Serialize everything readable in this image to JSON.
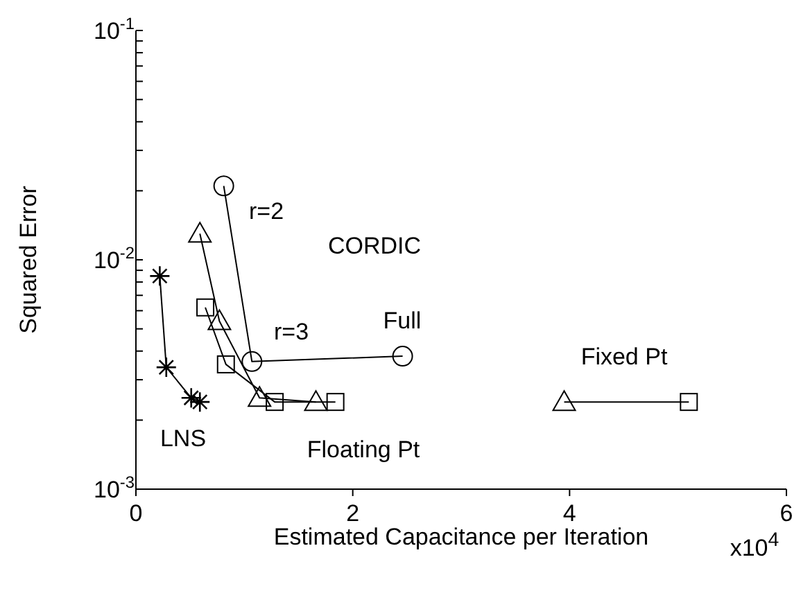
{
  "chart_data": {
    "type": "line",
    "xlabel": "Estimated Capacitance per Iteration",
    "ylabel": "Squared Error",
    "log": "y",
    "grid": false,
    "legend": false,
    "xlim": [
      0,
      6
    ],
    "xticks": [
      0,
      2,
      4,
      6
    ],
    "ylim": [
      0.001,
      0.1
    ],
    "yticks": [
      {
        "value": 0.001,
        "label": "10$^{-3}$"
      },
      {
        "value": 0.002,
        "label": null
      },
      {
        "value": 0.003,
        "label": null
      },
      {
        "value": 0.004,
        "label": null
      },
      {
        "value": 0.005,
        "label": null
      },
      {
        "value": 0.006,
        "label": null
      },
      {
        "value": 0.007,
        "label": null
      },
      {
        "value": 0.008,
        "label": null
      },
      {
        "value": 0.009,
        "label": null
      },
      {
        "value": 0.01,
        "label": "10$^{-2}$"
      },
      {
        "value": 0.02,
        "label": null
      },
      {
        "value": 0.03,
        "label": null
      },
      {
        "value": 0.04,
        "label": null
      },
      {
        "value": 0.05,
        "label": null
      },
      {
        "value": 0.06,
        "label": null
      },
      {
        "value": 0.07,
        "label": null
      },
      {
        "value": 0.08,
        "label": null
      },
      {
        "value": 0.09,
        "label": null
      },
      {
        "value": 0.1,
        "label": "10$^{-1}$"
      }
    ],
    "series": [
      {
        "color": "#000000",
        "marker": "cross",
        "x": [
          0.22,
          0.28,
          0.51,
          0.59
        ],
        "values": [
          0.0085,
          0.0034,
          0.0025,
          0.0024
        ]
      },
      {
        "color": "#000000",
        "marker": "circle",
        "x": [
          0.81,
          1.07,
          2.46
        ],
        "values": [
          0.021,
          0.0036,
          0.0038
        ]
      },
      {
        "color": "#000000",
        "marker": "triangle",
        "x": [
          0.59,
          0.77,
          1.14,
          1.66
        ],
        "values": [
          0.013,
          0.0054,
          0.0025,
          0.0024
        ]
      },
      {
        "color": "#000000",
        "marker": "square",
        "x": [
          0.64,
          0.83,
          1.28,
          1.84
        ],
        "values": [
          0.0062,
          0.0035,
          0.0024,
          0.0024
        ]
      },
      {
        "color": "#000000",
        "marker": "triangle",
        "x": [
          3.95
        ],
        "values": [
          0.0024
        ]
      },
      {
        "color": "#000000",
        "marker": "square",
        "x": [
          5.1
        ],
        "values": [
          0.0024
        ]
      },
      {
        "color": "#000000",
        "marker": "none",
        "x": [
          3.95,
          5.1
        ],
        "values": [
          0.0024,
          0.0024
        ]
      }
    ],
    "annotations": [
      "r=2",
      "CORDIC",
      "r=3",
      "Full",
      "Fixed Pt",
      "Floating Pt",
      "LNS",
      "x10$^{4}$"
    ]
  }
}
